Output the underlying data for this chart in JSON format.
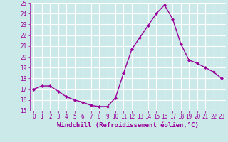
{
  "x": [
    0,
    1,
    2,
    3,
    4,
    5,
    6,
    7,
    8,
    9,
    10,
    11,
    12,
    13,
    14,
    15,
    16,
    17,
    18,
    19,
    20,
    21,
    22,
    23
  ],
  "y": [
    17.0,
    17.3,
    17.3,
    16.8,
    16.3,
    16.0,
    15.8,
    15.5,
    15.4,
    15.4,
    16.2,
    18.5,
    20.7,
    21.8,
    22.9,
    24.0,
    24.8,
    23.5,
    21.2,
    19.7,
    19.4,
    19.0,
    18.6,
    18.0
  ],
  "line_color": "#990099",
  "marker": "D",
  "marker_size": 2.0,
  "background_color": "#cce9e9",
  "grid_color": "#bbdddd",
  "xlabel": "Windchill (Refroidissement éolien,°C)",
  "ylabel": "",
  "ylim": [
    15,
    25
  ],
  "xlim": [
    -0.5,
    23.5
  ],
  "yticks": [
    15,
    16,
    17,
    18,
    19,
    20,
    21,
    22,
    23,
    24,
    25
  ],
  "xticks": [
    0,
    1,
    2,
    3,
    4,
    5,
    6,
    7,
    8,
    9,
    10,
    11,
    12,
    13,
    14,
    15,
    16,
    17,
    18,
    19,
    20,
    21,
    22,
    23
  ],
  "tick_fontsize": 5.5,
  "xlabel_fontsize": 6.5,
  "line_width": 1.0
}
